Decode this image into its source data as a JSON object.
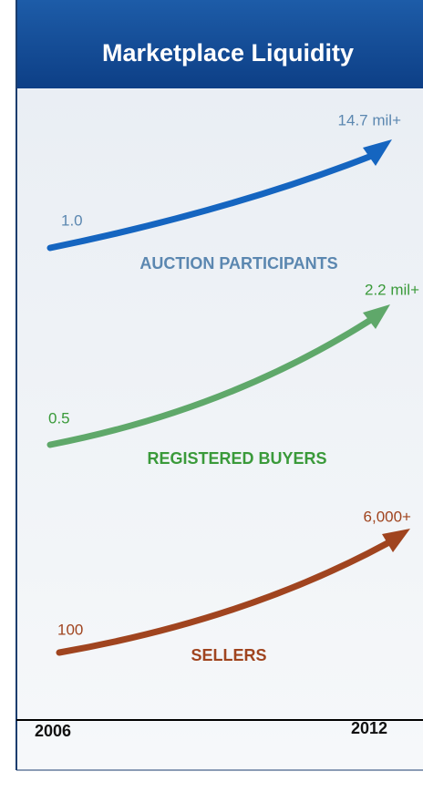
{
  "header": {
    "title": "Marketplace Liquidity"
  },
  "metrics": [
    {
      "start": "1.0",
      "end": "14.7 mil+",
      "label": "AUCTION PARTICIPANTS"
    },
    {
      "start": "0.5",
      "end": "2.2 mil+",
      "label": "REGISTERED BUYERS"
    },
    {
      "start": "100",
      "end": "6,000+",
      "label": "SELLERS"
    }
  ],
  "years": {
    "start": "2006",
    "end": "2012"
  }
}
